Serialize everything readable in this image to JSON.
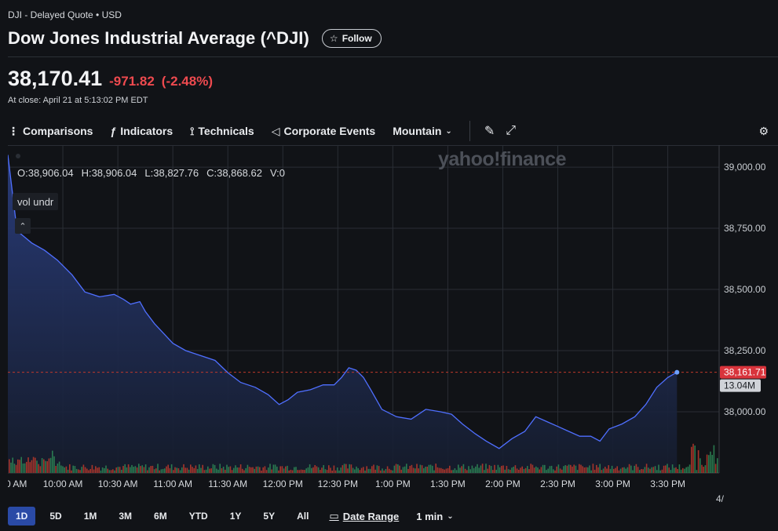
{
  "header": {
    "meta": "DJI - Delayed Quote • USD",
    "title": "Dow Jones Industrial Average (^DJI)",
    "follow_label": "Follow"
  },
  "quote": {
    "price": "38,170.41",
    "change": "-971.82",
    "change_pct": "(-2.48%)",
    "close_time": "At close: April 21 at 5:13:02 PM EDT",
    "down_color": "#ee4a4f"
  },
  "toolbar": {
    "items": [
      {
        "label": "Comparisons",
        "icon": "comparisons-icon"
      },
      {
        "label": "Indicators",
        "icon": "indicators-icon"
      },
      {
        "label": "Technicals",
        "icon": "technicals-icon"
      },
      {
        "label": "Corporate Events",
        "icon": "megaphone-icon"
      },
      {
        "label": "Mountain",
        "icon": "chevron-down-icon"
      }
    ]
  },
  "chart_overlay": {
    "ohlc": [
      "O:38,906.04",
      "H:38,906.04",
      "L:38,827.76",
      "C:38,868.62",
      "V:0"
    ],
    "vol_chip": "vol undr",
    "watermark": "yahoo!finance"
  },
  "chart_data": {
    "type": "area",
    "series": [
      {
        "values": [
          [
            570,
            39050
          ],
          [
            575,
            38740
          ],
          [
            583,
            38690
          ],
          [
            590,
            38660
          ],
          [
            597,
            38620
          ],
          [
            605,
            38560
          ],
          [
            612,
            38490
          ],
          [
            620,
            38470
          ],
          [
            628,
            38480
          ],
          [
            633,
            38460
          ],
          [
            637,
            38440
          ],
          [
            642,
            38450
          ],
          [
            645,
            38410
          ],
          [
            650,
            38360
          ],
          [
            655,
            38320
          ],
          [
            660,
            38280
          ],
          [
            667,
            38250
          ],
          [
            675,
            38230
          ],
          [
            683,
            38210
          ],
          [
            690,
            38160
          ],
          [
            697,
            38120
          ],
          [
            705,
            38100
          ],
          [
            712,
            38070
          ],
          [
            718,
            38030
          ],
          [
            723,
            38050
          ],
          [
            728,
            38080
          ],
          [
            735,
            38090
          ],
          [
            742,
            38110
          ],
          [
            748,
            38110
          ],
          [
            752,
            38140
          ],
          [
            756,
            38180
          ],
          [
            760,
            38170
          ],
          [
            764,
            38140
          ],
          [
            768,
            38090
          ],
          [
            774,
            38010
          ],
          [
            782,
            37980
          ],
          [
            790,
            37970
          ],
          [
            798,
            38010
          ],
          [
            806,
            38000
          ],
          [
            812,
            37990
          ],
          [
            818,
            37950
          ],
          [
            825,
            37910
          ],
          [
            831,
            37880
          ],
          [
            838,
            37850
          ],
          [
            845,
            37890
          ],
          [
            852,
            37920
          ],
          [
            858,
            37980
          ],
          [
            864,
            37960
          ],
          [
            870,
            37940
          ],
          [
            876,
            37920
          ],
          [
            882,
            37900
          ],
          [
            888,
            37900
          ],
          [
            893,
            37880
          ],
          [
            898,
            37930
          ],
          [
            905,
            37950
          ],
          [
            912,
            37980
          ],
          [
            918,
            38030
          ],
          [
            924,
            38100
          ],
          [
            930,
            38140
          ],
          [
            935,
            38161.71
          ]
        ]
      }
    ],
    "ylim": [
      37750,
      39090
    ],
    "y_ticks": [
      "39,000.00",
      "38,750.00",
      "38,500.00",
      "38,250.00",
      "38,000.00"
    ],
    "y_tick_values": [
      39000,
      38750,
      38500,
      38250,
      38000
    ],
    "x_ticks": [
      "0 AM",
      "10:00 AM",
      "10:30 AM",
      "11:00 AM",
      "11:30 AM",
      "12:00 PM",
      "12:30 PM",
      "1:00 PM",
      "1:30 PM",
      "2:00 PM",
      "2:30 PM",
      "3:00 PM",
      "3:30 PM"
    ],
    "x_tick_minutes": [
      570,
      600,
      630,
      660,
      690,
      720,
      750,
      780,
      810,
      840,
      870,
      900,
      930
    ],
    "xlim": [
      570,
      958
    ],
    "last_price_label": "38,161.71",
    "last_volume_label": "13.04M",
    "reference_line": 38161.71,
    "x_edge_label": "4/",
    "line_color": "#4f6fff",
    "fill_top_color": "#2a3d7d",
    "vol_up_color": "#2e8b57",
    "vol_down_color": "#c0392b"
  },
  "range_bar": {
    "ranges": [
      "1D",
      "5D",
      "1M",
      "3M",
      "6M",
      "YTD",
      "1Y",
      "5Y",
      "All"
    ],
    "active": "1D",
    "date_range_label": "Date Range",
    "interval_label": "1 min"
  }
}
